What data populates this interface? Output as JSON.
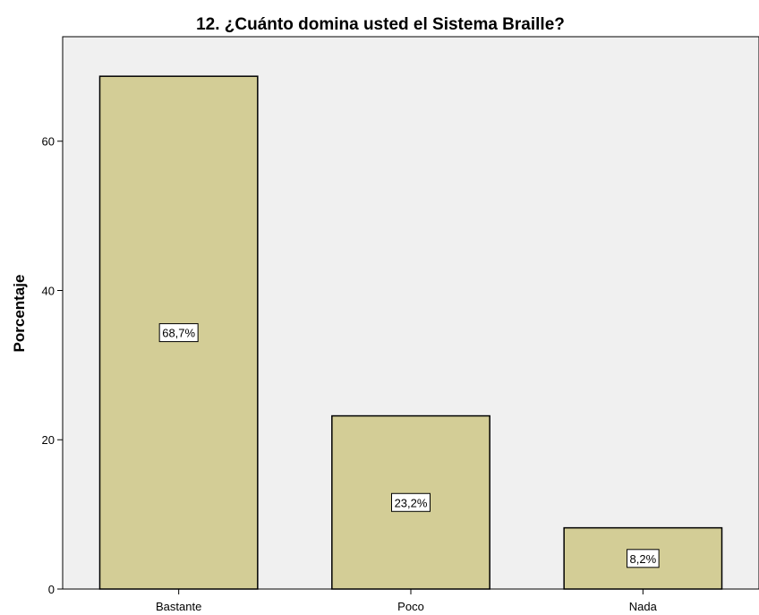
{
  "chart_data": {
    "type": "bar",
    "title": "12. ¿Cuánto domina usted el Sistema  Braille?",
    "xlabel": "",
    "ylabel": "Porcentaje",
    "categories": [
      "Bastante",
      "Poco",
      "Nada"
    ],
    "values": [
      68.7,
      23.2,
      8.2
    ],
    "data_labels": [
      "68,7%",
      "23,2%",
      "8,2%"
    ],
    "ylim": [
      0,
      74
    ],
    "yticks": [
      0,
      20,
      40,
      60
    ],
    "ytick_labels": [
      "0",
      "20",
      "40",
      "60"
    ],
    "grid": false,
    "legend": "none",
    "colors": {
      "bar_fill": "#d3cd96",
      "bar_stroke": "#000000",
      "plot_background": "#f0f0f0",
      "axis": "#000000",
      "label_box_fill": "#ffffff"
    }
  }
}
